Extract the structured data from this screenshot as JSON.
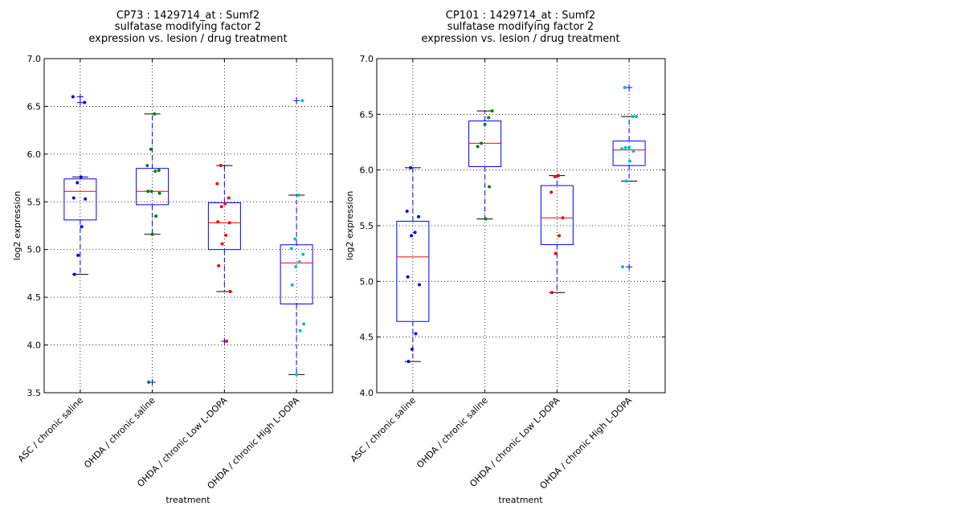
{
  "chart_data": [
    {
      "type": "box",
      "title_lines": [
        "CP73 : 1429714_at : Sumf2",
        "sulfatase modifying factor 2",
        "expression vs. lesion / drug treatment"
      ],
      "xlabel": "treatment",
      "ylabel": "log2 expression",
      "ylim": [
        3.5,
        7.0
      ],
      "yticks": [
        "3.5",
        "4.0",
        "4.5",
        "5.0",
        "5.5",
        "6.0",
        "6.5",
        "7.0"
      ],
      "grid": true,
      "categories": [
        "ASC / chronic saline",
        "OHDA / chronic saline",
        "OHDA / chronic Low L-DOPA",
        "OHDA / chronic High L-DOPA"
      ],
      "boxes": [
        {
          "q1": 5.31,
          "median": 5.61,
          "q3": 5.74,
          "whisker_low": 4.74,
          "whisker_high": 5.76,
          "outliers": [
            6.54,
            6.6
          ],
          "color": "#0000ff",
          "points": [
            6.6,
            6.54,
            5.76,
            5.7,
            5.54,
            5.53,
            5.24,
            4.94,
            4.74
          ]
        },
        {
          "q1": 5.47,
          "median": 5.61,
          "q3": 5.85,
          "whisker_low": 5.16,
          "whisker_high": 6.42,
          "outliers": [
            3.61
          ],
          "color": "#008000",
          "points": [
            6.42,
            6.05,
            5.88,
            5.83,
            5.82,
            5.61,
            5.61,
            5.59,
            5.35,
            5.16,
            3.61
          ]
        },
        {
          "q1": 5.0,
          "median": 5.28,
          "q3": 5.49,
          "whisker_low": 4.56,
          "whisker_high": 5.88,
          "outliers": [
            4.04
          ],
          "color": "#ff0000",
          "points": [
            5.88,
            5.69,
            5.54,
            5.48,
            5.45,
            5.29,
            5.28,
            5.15,
            5.06,
            4.83,
            4.56,
            4.04
          ]
        },
        {
          "q1": 4.43,
          "median": 4.86,
          "q3": 5.05,
          "whisker_low": 3.69,
          "whisker_high": 5.57,
          "outliers": [
            6.56
          ],
          "color": "#00bfbf",
          "points": [
            6.56,
            5.57,
            5.11,
            5.01,
            4.95,
            4.87,
            4.82,
            4.63,
            4.22,
            4.15,
            3.69
          ]
        }
      ]
    },
    {
      "type": "box",
      "title_lines": [
        "CP101 : 1429714_at : Sumf2",
        "sulfatase modifying factor 2",
        "expression vs. lesion / drug treatment"
      ],
      "xlabel": "treatment",
      "ylabel": "log2 expression",
      "ylim": [
        4.0,
        7.0
      ],
      "yticks": [
        "4.0",
        "4.5",
        "5.0",
        "5.5",
        "6.0",
        "6.5",
        "7.0"
      ],
      "grid": true,
      "categories": [
        "ASC / chronic saline",
        "OHDA / chronic saline",
        "OHDA / chronic Low L-DOPA",
        "OHDA / chronic High L-DOPA"
      ],
      "boxes": [
        {
          "q1": 4.64,
          "median": 5.22,
          "q3": 5.54,
          "whisker_low": 4.28,
          "whisker_high": 6.02,
          "outliers": [],
          "color": "#0000ff",
          "points": [
            6.02,
            5.63,
            5.58,
            5.44,
            5.41,
            5.04,
            4.97,
            4.53,
            4.39,
            4.28
          ]
        },
        {
          "q1": 6.03,
          "median": 6.24,
          "q3": 6.44,
          "whisker_low": 5.56,
          "whisker_high": 6.53,
          "outliers": [],
          "color": "#008000",
          "points": [
            6.53,
            6.47,
            6.41,
            6.24,
            6.21,
            5.85,
            5.56
          ]
        },
        {
          "q1": 5.33,
          "median": 5.57,
          "q3": 5.86,
          "whisker_low": 4.9,
          "whisker_high": 5.95,
          "outliers": [],
          "color": "#ff0000",
          "points": [
            5.95,
            5.94,
            5.8,
            5.57,
            5.41,
            5.25,
            4.9
          ]
        },
        {
          "q1": 6.04,
          "median": 6.18,
          "q3": 6.26,
          "whisker_low": 5.9,
          "whisker_high": 6.48,
          "outliers": [
            6.74,
            5.13
          ],
          "color": "#00bfbf",
          "points": [
            6.74,
            6.48,
            6.48,
            6.2,
            6.2,
            6.19,
            6.17,
            6.08,
            5.9,
            5.13
          ]
        }
      ]
    }
  ],
  "colors": {
    "box": "#0000ff",
    "median": "#ff0000",
    "whisker": "#000000",
    "grid": "#000000"
  }
}
